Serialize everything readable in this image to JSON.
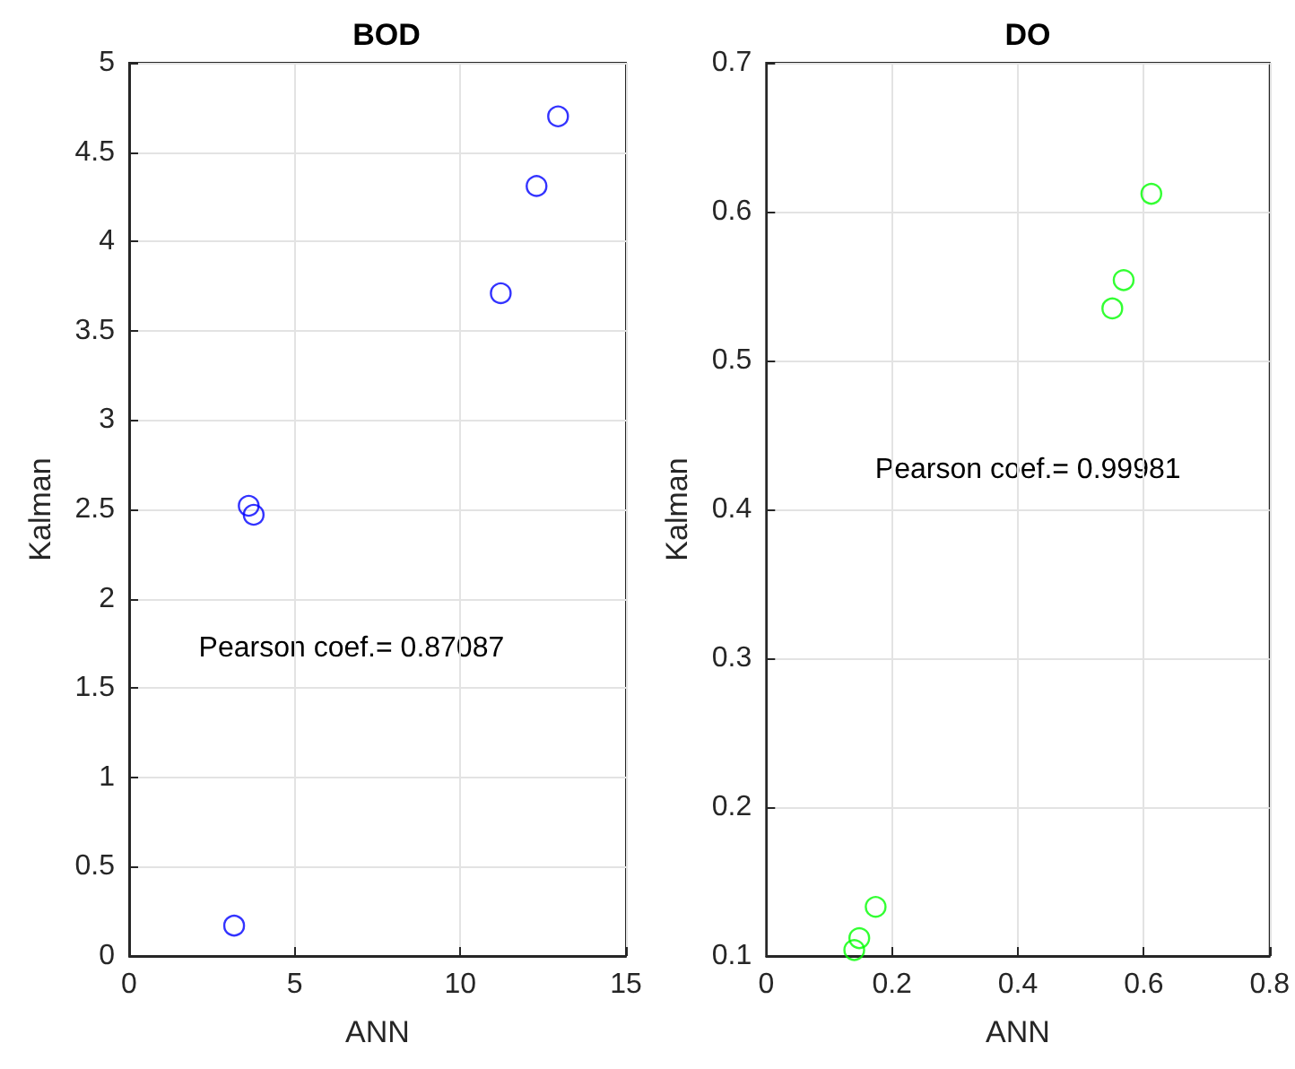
{
  "chart_data": [
    {
      "type": "scatter",
      "title": "BOD",
      "xlabel": "ANN",
      "ylabel": "Kalman",
      "x": [
        3.17,
        3.61,
        3.76,
        11.22,
        12.3,
        12.95
      ],
      "series": [
        {
          "color": "#0000ff",
          "values": [
            0.17,
            2.52,
            2.47,
            3.71,
            4.31,
            4.7
          ]
        }
      ],
      "xlim": [
        0,
        15
      ],
      "xticks": [
        0,
        5,
        10,
        15
      ],
      "ylim": [
        0,
        5
      ],
      "yticks": [
        0,
        0.5,
        1,
        1.5,
        2,
        2.5,
        3,
        3.5,
        4,
        4.5,
        5
      ],
      "grid": true,
      "marker": "circle",
      "annotations": [
        "Pearson coef.= 0.87087"
      ]
    },
    {
      "type": "scatter",
      "title": "DO",
      "xlabel": "ANN",
      "ylabel": "Kalman",
      "x": [
        0.14,
        0.148,
        0.174,
        0.55,
        0.568,
        0.612
      ],
      "series": [
        {
          "color": "#00ff00",
          "values": [
            0.104,
            0.112,
            0.133,
            0.535,
            0.554,
            0.612
          ]
        }
      ],
      "xlim": [
        0,
        0.8
      ],
      "xticks": [
        0,
        0.2,
        0.4,
        0.6,
        0.8
      ],
      "ylim": [
        0.1,
        0.7
      ],
      "yticks": [
        0.1,
        0.2,
        0.3,
        0.4,
        0.5,
        0.6,
        0.7
      ],
      "grid": true,
      "marker": "circle",
      "annotations": [
        "Pearson coef.= 0.99981"
      ]
    }
  ]
}
